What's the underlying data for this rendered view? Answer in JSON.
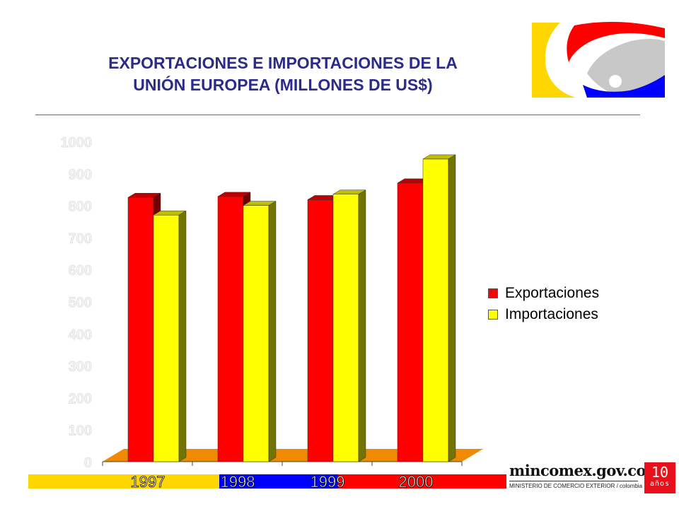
{
  "title": {
    "line1": "EXPORTACIONES E IMPORTACIONES DE LA",
    "line2": "UNIÓN EUROPEA  (MILLONES DE US$)"
  },
  "colors": {
    "title": "#2b2b8c",
    "exportaciones": "#ff0000",
    "importaciones": "#ffff00",
    "floor": "#f08a00"
  },
  "chart_data": {
    "type": "bar",
    "categories": [
      "1997",
      "1998",
      "1999",
      "2000"
    ],
    "series": [
      {
        "name": "Exportaciones",
        "values": [
          825,
          828,
          818,
          870
        ]
      },
      {
        "name": "Importaciones",
        "values": [
          770,
          800,
          835,
          945
        ]
      }
    ],
    "ylim": [
      0,
      1000
    ],
    "yticks": [
      "0",
      "100",
      "200",
      "300",
      "400",
      "500",
      "600",
      "700",
      "800",
      "900",
      "1000"
    ],
    "legend_position": "right",
    "grid": false
  },
  "band_colors": [
    "#ffd700",
    "#ffd700",
    "#0000ff",
    "#ff0000"
  ],
  "legend": {
    "exportaciones": "Exportaciones",
    "importaciones": "Importaciones"
  },
  "footer": {
    "site": "mincomex.gov.co",
    "ministry": "MINISTERIO DE COMERCIO EXTERIOR / colombia",
    "badge_number": "10",
    "badge_text": "años"
  }
}
